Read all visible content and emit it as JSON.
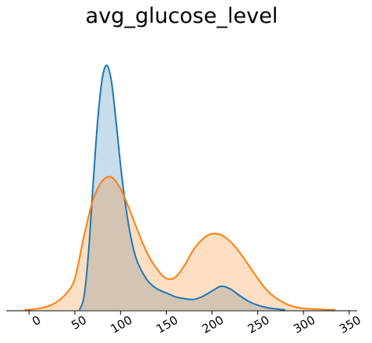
{
  "chart_data": {
    "type": "area",
    "title": "avg_glucose_level",
    "xlabel": "",
    "ylabel": "",
    "xlim": [
      -10,
      350
    ],
    "ylim": [
      0,
      1.0
    ],
    "xticks": [
      "0",
      "50",
      "100",
      "150",
      "200",
      "250",
      "300",
      "350"
    ],
    "xtick_values": [
      0,
      50,
      100,
      150,
      200,
      250,
      300,
      350
    ],
    "y_axis_visible": false,
    "grid": false,
    "legend": "none",
    "x_tick_rotation_deg": -30,
    "colors": {
      "series_0": "#1f77b4",
      "series_1": "#ff7f0e",
      "overlap": "#d4c4b4"
    },
    "series": [
      {
        "x": [
          55,
          60,
          65,
          70,
          75,
          80,
          85,
          90,
          95,
          100,
          105,
          110,
          115,
          120,
          130,
          140,
          150,
          160,
          170,
          180,
          190,
          200,
          210,
          220,
          230,
          240,
          250,
          260,
          270,
          280
        ],
        "values": [
          0.0,
          0.05,
          0.22,
          0.48,
          0.72,
          0.88,
          0.93,
          0.87,
          0.72,
          0.55,
          0.41,
          0.3,
          0.22,
          0.17,
          0.11,
          0.08,
          0.065,
          0.05,
          0.043,
          0.04,
          0.052,
          0.072,
          0.09,
          0.08,
          0.055,
          0.033,
          0.018,
          0.009,
          0.004,
          0.0
        ]
      },
      {
        "x": [
          -5,
          10,
          25,
          40,
          50,
          60,
          70,
          80,
          90,
          100,
          110,
          120,
          130,
          140,
          150,
          160,
          170,
          180,
          190,
          200,
          210,
          220,
          230,
          240,
          250,
          260,
          270,
          280,
          290,
          300,
          320,
          335
        ],
        "values": [
          0.0,
          0.005,
          0.02,
          0.06,
          0.12,
          0.28,
          0.42,
          0.49,
          0.505,
          0.46,
          0.38,
          0.29,
          0.21,
          0.155,
          0.12,
          0.125,
          0.17,
          0.23,
          0.27,
          0.29,
          0.285,
          0.26,
          0.22,
          0.17,
          0.12,
          0.075,
          0.045,
          0.025,
          0.012,
          0.006,
          0.002,
          0.0
        ]
      }
    ]
  }
}
